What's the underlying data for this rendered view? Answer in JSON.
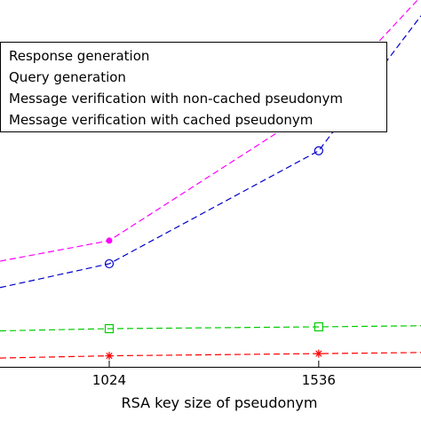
{
  "chart_data": {
    "type": "line",
    "xlabel": "RSA key size of pseudonym",
    "ylabel": "",
    "title": "",
    "x_ticks": [
      1024,
      1536
    ],
    "xlim": [
      757,
      1786
    ],
    "ylim": [
      0,
      1
    ],
    "y_scale": "linear",
    "grid": false,
    "legend_position": "top-left",
    "series": [
      {
        "name": "Response generation",
        "color": "#ff00ff",
        "marker": "dot",
        "points": [
          {
            "x": 757,
            "y": 0.288
          },
          {
            "x": 1024,
            "y": 0.344
          },
          {
            "x": 1536,
            "y": 0.711
          },
          {
            "x": 1786,
            "y": 1.01
          }
        ]
      },
      {
        "name": "Query generation",
        "color": "#0000cc",
        "marker": "circle",
        "points": [
          {
            "x": 757,
            "y": 0.216
          },
          {
            "x": 1024,
            "y": 0.281
          },
          {
            "x": 1536,
            "y": 0.589
          },
          {
            "x": 1786,
            "y": 0.957
          }
        ]
      },
      {
        "name": "Message verification with non-cached pseudonym",
        "color": "#00cc00",
        "marker": "square",
        "points": [
          {
            "x": 757,
            "y": 0.098
          },
          {
            "x": 1024,
            "y": 0.104
          },
          {
            "x": 1536,
            "y": 0.109
          },
          {
            "x": 1786,
            "y": 0.112
          }
        ]
      },
      {
        "name": "Message verification with cached pseudonym",
        "color": "#ff0000",
        "marker": "star",
        "points": [
          {
            "x": 757,
            "y": 0.024
          },
          {
            "x": 1024,
            "y": 0.03
          },
          {
            "x": 1536,
            "y": 0.036
          },
          {
            "x": 1786,
            "y": 0.039
          }
        ]
      }
    ]
  }
}
